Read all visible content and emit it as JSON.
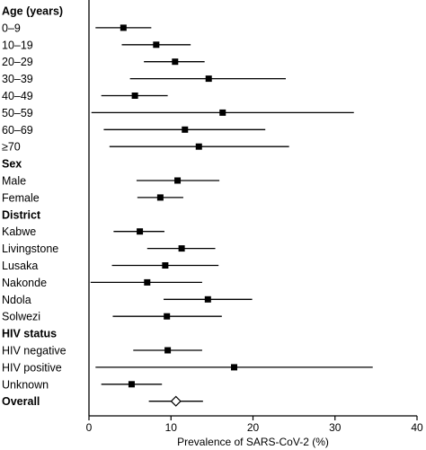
{
  "chart_data": {
    "type": "forest",
    "xlabel": "Prevalence of SARS-CoV-2 (%)",
    "xlim": [
      0,
      40
    ],
    "xticks": [
      0,
      10,
      20,
      30,
      40
    ],
    "rows": [
      {
        "label": "Age (years)",
        "heading": true
      },
      {
        "label": "0–9",
        "estimate": 4.2,
        "lower": 0.8,
        "upper": 7.6
      },
      {
        "label": "10–19",
        "estimate": 8.2,
        "lower": 4.0,
        "upper": 12.4
      },
      {
        "label": "20–29",
        "estimate": 10.5,
        "lower": 6.7,
        "upper": 14.1
      },
      {
        "label": "30–39",
        "estimate": 14.6,
        "lower": 5.0,
        "upper": 24.0
      },
      {
        "label": "40–49",
        "estimate": 5.6,
        "lower": 1.5,
        "upper": 9.6
      },
      {
        "label": "50–59",
        "estimate": 16.3,
        "lower": 0.3,
        "upper": 32.3
      },
      {
        "label": "60–69",
        "estimate": 11.7,
        "lower": 1.8,
        "upper": 21.5
      },
      {
        "label": "≥70",
        "estimate": 13.4,
        "lower": 2.5,
        "upper": 24.4
      },
      {
        "label": "Sex",
        "heading": true
      },
      {
        "label": "Male",
        "estimate": 10.8,
        "lower": 5.8,
        "upper": 15.9
      },
      {
        "label": "Female",
        "estimate": 8.7,
        "lower": 5.9,
        "upper": 11.5
      },
      {
        "label": "District",
        "heading": true
      },
      {
        "label": "Kabwe",
        "estimate": 6.2,
        "lower": 3.0,
        "upper": 9.2
      },
      {
        "label": "Livingstone",
        "estimate": 11.3,
        "lower": 7.1,
        "upper": 15.4
      },
      {
        "label": "Lusaka",
        "estimate": 9.3,
        "lower": 2.8,
        "upper": 15.8
      },
      {
        "label": "Nakonde",
        "estimate": 7.1,
        "lower": 0.2,
        "upper": 13.8
      },
      {
        "label": "Ndola",
        "estimate": 14.5,
        "lower": 9.1,
        "upper": 19.9
      },
      {
        "label": "Solwezi",
        "estimate": 9.5,
        "lower": 2.9,
        "upper": 16.2
      },
      {
        "label": "HIV status",
        "heading": true
      },
      {
        "label": "HIV negative",
        "estimate": 9.6,
        "lower": 5.4,
        "upper": 13.8
      },
      {
        "label": "HIV positive",
        "estimate": 17.7,
        "lower": 0.8,
        "upper": 34.6
      },
      {
        "label": "Unknown",
        "estimate": 5.2,
        "lower": 1.5,
        "upper": 8.9
      },
      {
        "label": "Overall",
        "heading": true,
        "estimate": 10.6,
        "lower": 7.3,
        "upper": 13.9,
        "marker": "diamond"
      }
    ]
  }
}
